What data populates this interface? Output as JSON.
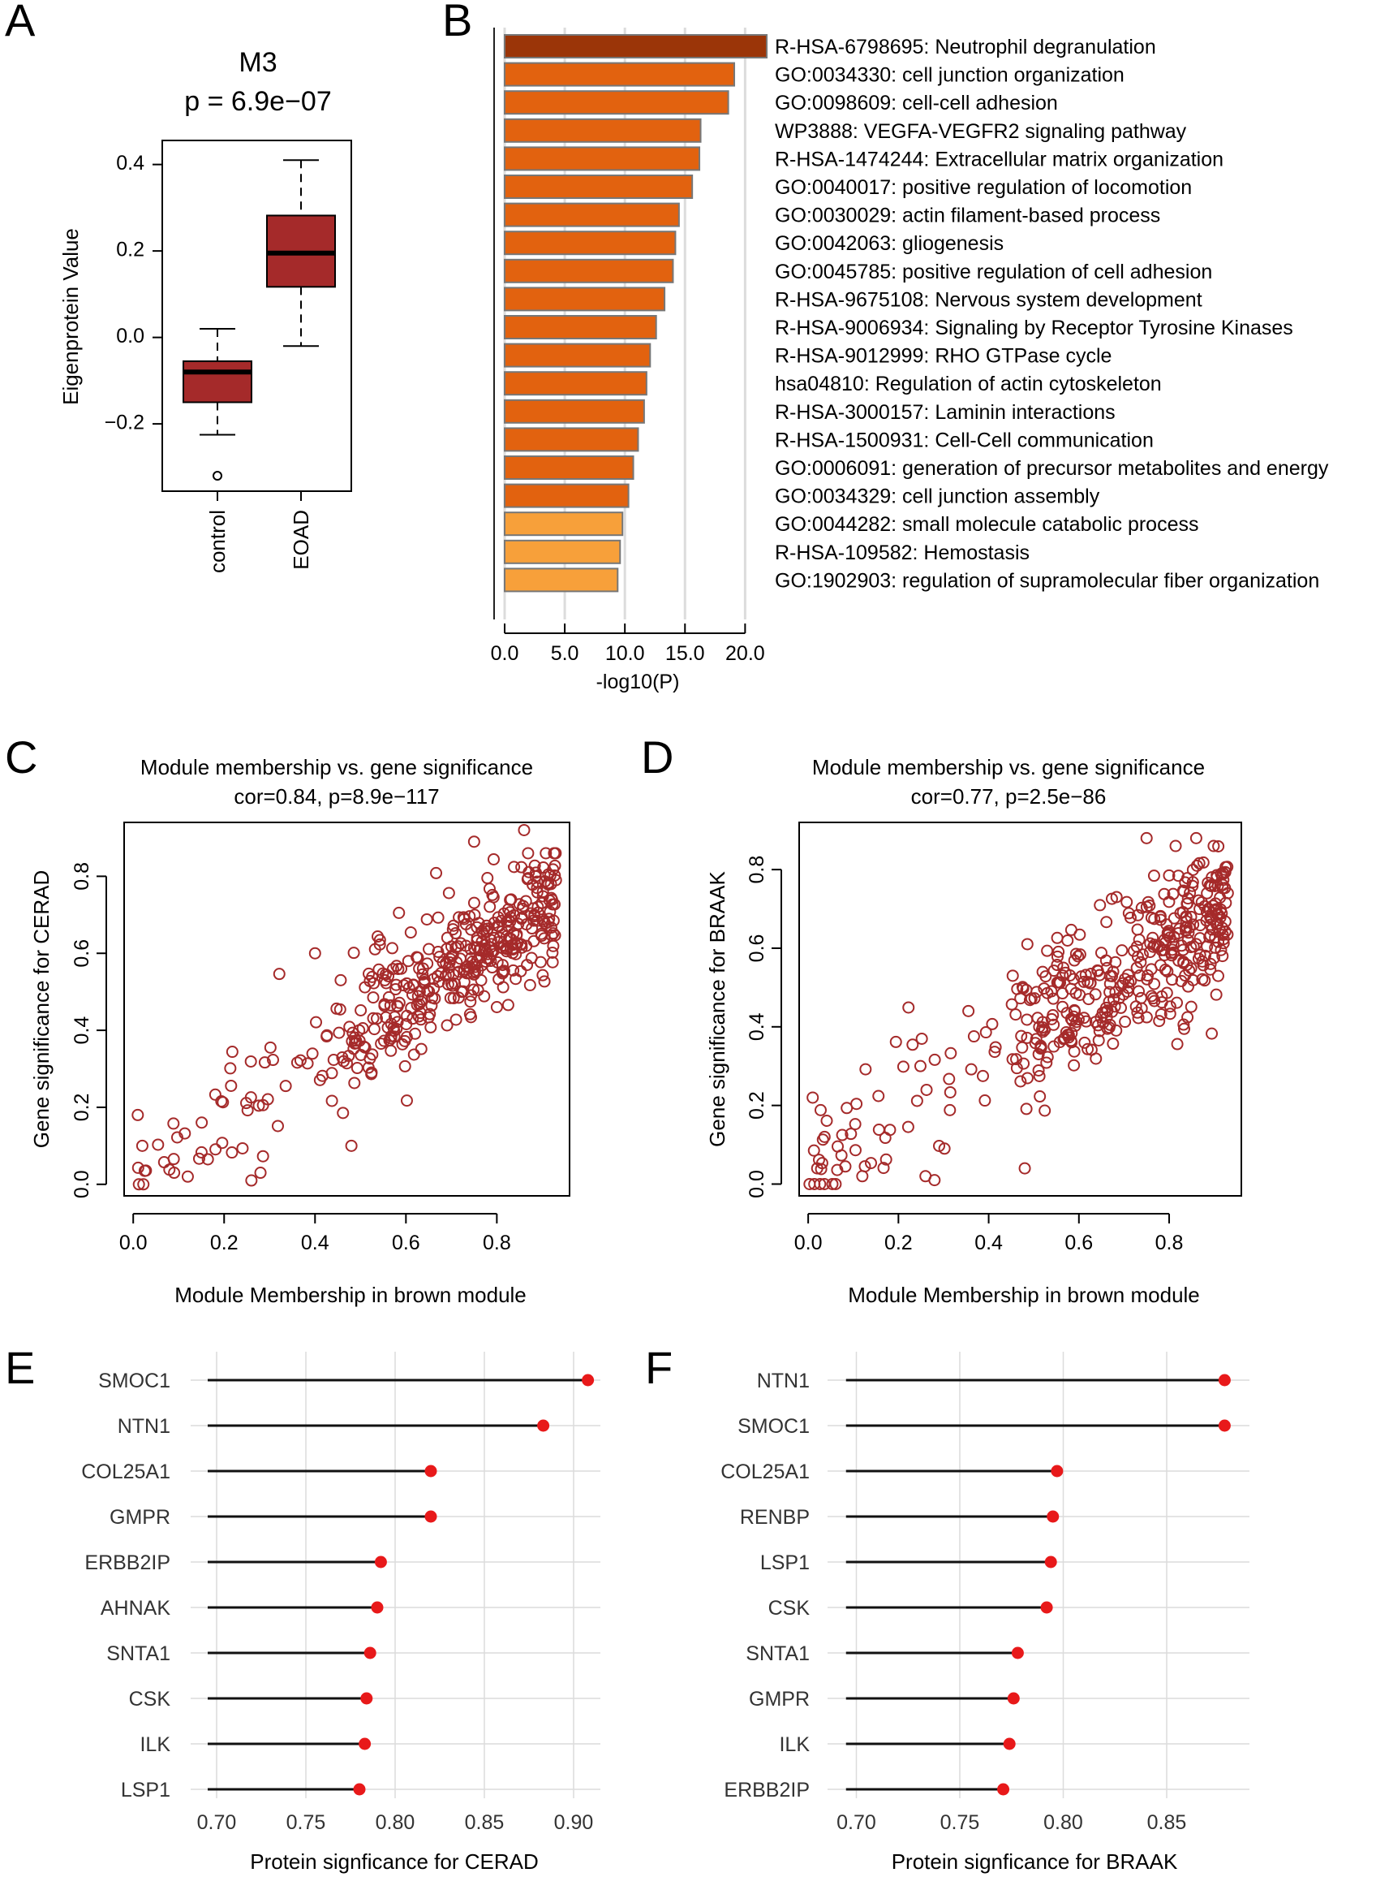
{
  "colors": {
    "box_fill": "#a52a2a",
    "scatter": "#a52a2a",
    "bar_dark": "#9b3508",
    "bar_mid": "#e2620f",
    "bar_light": "#f7a03a",
    "lollipop_dot": "#e8191a",
    "grid": "#dcdcdc"
  },
  "chart_data": [
    {
      "panel": "A",
      "type": "box",
      "title": "M3",
      "subtitle": "p = 6.9e−07",
      "ylabel": "Eigenprotein Value",
      "ylim": [
        -0.35,
        0.45
      ],
      "yticks": [
        {
          "value": 0.4,
          "label": "0.4"
        },
        {
          "value": 0.2,
          "label": "0.2"
        },
        {
          "value": 0.0,
          "label": "0.0"
        },
        {
          "value": -0.2,
          "label": "−0.2"
        }
      ],
      "groups": [
        {
          "name": "control",
          "min": -0.225,
          "q1": -0.15,
          "median": -0.08,
          "q3": -0.055,
          "max": 0.02,
          "outliers": [
            -0.32
          ]
        },
        {
          "name": "EOAD",
          "min": -0.02,
          "q1": 0.117,
          "median": 0.195,
          "q3": 0.282,
          "max": 0.41,
          "outliers": []
        }
      ]
    },
    {
      "panel": "B",
      "type": "bar",
      "orientation": "horizontal",
      "xlabel": "-log10(P)",
      "xlim": [
        0,
        22
      ],
      "xticks": [
        {
          "value": 0,
          "label": "0.0"
        },
        {
          "value": 5,
          "label": "5.0"
        },
        {
          "value": 10,
          "label": "10.0"
        },
        {
          "value": 15,
          "label": "15.0"
        },
        {
          "value": 20,
          "label": "20.0"
        }
      ],
      "categories": [
        "R-HSA-6798695: Neutrophil degranulation",
        "GO:0034330: cell junction organization",
        "GO:0098609: cell-cell adhesion",
        "WP3888: VEGFA-VEGFR2 signaling pathway",
        "R-HSA-1474244: Extracellular matrix organization",
        "GO:0040017: positive regulation of locomotion",
        "GO:0030029: actin filament-based process",
        "GO:0042063: gliogenesis",
        "GO:0045785: positive regulation of cell adhesion",
        "R-HSA-9675108: Nervous system development",
        "R-HSA-9006934: Signaling by Receptor Tyrosine Kinases",
        "R-HSA-9012999: RHO GTPase cycle",
        "hsa04810: Regulation of actin cytoskeleton",
        "R-HSA-3000157: Laminin interactions",
        "R-HSA-1500931: Cell-Cell communication",
        "GO:0006091: generation of precursor metabolites and energy",
        "GO:0034329: cell junction assembly",
        "GO:0044282: small molecule catabolic process",
        "R-HSA-109582: Hemostasis",
        "GO:1902903: regulation of supramolecular fiber organization"
      ],
      "values": [
        21.8,
        19.1,
        18.6,
        16.3,
        16.2,
        15.6,
        14.5,
        14.2,
        14.0,
        13.3,
        12.6,
        12.1,
        11.8,
        11.6,
        11.1,
        10.7,
        10.3,
        9.8,
        9.6,
        9.4
      ],
      "levels": [
        "dark",
        "mid",
        "mid",
        "mid",
        "mid",
        "mid",
        "mid",
        "mid",
        "mid",
        "mid",
        "mid",
        "mid",
        "mid",
        "mid",
        "mid",
        "mid",
        "mid",
        "light",
        "light",
        "light"
      ]
    },
    {
      "panel": "C",
      "type": "scatter",
      "title": "Module membership vs. gene significance",
      "subtitle": "cor=0.84, p=8.9e−117",
      "xlabel": "Module Membership in brown module",
      "ylabel": "Gene significance for CERAD",
      "xlim": [
        -0.02,
        0.96
      ],
      "ylim": [
        -0.03,
        0.94
      ],
      "xticks": [
        {
          "value": 0.0,
          "label": "0.0"
        },
        {
          "value": 0.2,
          "label": "0.2"
        },
        {
          "value": 0.4,
          "label": "0.4"
        },
        {
          "value": 0.6,
          "label": "0.6"
        },
        {
          "value": 0.8,
          "label": "0.8"
        }
      ],
      "yticks": [
        {
          "value": 0.0,
          "label": "0.0"
        },
        {
          "value": 0.2,
          "label": "0.2"
        },
        {
          "value": 0.4,
          "label": "0.4"
        },
        {
          "value": 0.6,
          "label": "0.6"
        },
        {
          "value": 0.8,
          "label": "0.8"
        }
      ],
      "points_generated": {
        "n": 430,
        "slope": 0.84,
        "intercept": 0.02,
        "noise": 0.085,
        "seed": 7
      },
      "anchor_points": [
        [
          0.01,
          0.18
        ],
        [
          0.02,
          0.1
        ],
        [
          0.09,
          0.03
        ],
        [
          0.12,
          0.02
        ],
        [
          0.26,
          0.01
        ],
        [
          0.28,
          0.03
        ],
        [
          0.4,
          0.6
        ],
        [
          0.48,
          0.1
        ],
        [
          0.75,
          0.89
        ],
        [
          0.86,
          0.92
        ],
        [
          0.93,
          0.79
        ]
      ]
    },
    {
      "panel": "D",
      "type": "scatter",
      "title": "Module membership vs. gene significance",
      "subtitle": "cor=0.77, p=2.5e−86",
      "xlabel": "Module Membership in brown module",
      "ylabel": "Gene significance for BRAAK",
      "xlim": [
        -0.02,
        0.96
      ],
      "ylim": [
        -0.03,
        0.92
      ],
      "xticks": [
        {
          "value": 0.0,
          "label": "0.0"
        },
        {
          "value": 0.2,
          "label": "0.2"
        },
        {
          "value": 0.4,
          "label": "0.4"
        },
        {
          "value": 0.6,
          "label": "0.6"
        },
        {
          "value": 0.8,
          "label": "0.8"
        }
      ],
      "yticks": [
        {
          "value": 0.0,
          "label": "0.0"
        },
        {
          "value": 0.2,
          "label": "0.2"
        },
        {
          "value": 0.4,
          "label": "0.4"
        },
        {
          "value": 0.6,
          "label": "0.6"
        },
        {
          "value": 0.8,
          "label": "0.8"
        }
      ],
      "points_generated": {
        "n": 430,
        "slope": 0.77,
        "intercept": 0.04,
        "noise": 0.095,
        "seed": 13
      },
      "anchor_points": [
        [
          0.01,
          0.22
        ],
        [
          0.02,
          0.04
        ],
        [
          0.12,
          0.02
        ],
        [
          0.26,
          0.02
        ],
        [
          0.28,
          0.01
        ],
        [
          0.48,
          0.04
        ],
        [
          0.75,
          0.88
        ],
        [
          0.86,
          0.88
        ],
        [
          0.93,
          0.74
        ]
      ]
    },
    {
      "panel": "E",
      "type": "lollipop",
      "xlabel": "Protein signficance for CERAD",
      "xlim": [
        0.69,
        0.915
      ],
      "baseline": 0.695,
      "xticks": [
        {
          "value": 0.7,
          "label": "0.70"
        },
        {
          "value": 0.75,
          "label": "0.75"
        },
        {
          "value": 0.8,
          "label": "0.80"
        },
        {
          "value": 0.85,
          "label": "0.85"
        },
        {
          "value": 0.9,
          "label": "0.90"
        }
      ],
      "categories": [
        "SMOC1",
        "NTN1",
        "COL25A1",
        "GMPR",
        "ERBB2IP",
        "AHNAK",
        "SNTA1",
        "CSK",
        "ILK",
        "LSP1"
      ],
      "values": [
        0.908,
        0.883,
        0.82,
        0.82,
        0.792,
        0.79,
        0.786,
        0.784,
        0.783,
        0.78
      ]
    },
    {
      "panel": "F",
      "type": "lollipop",
      "xlabel": "Protein signficance for BRAAK",
      "xlim": [
        0.69,
        0.89
      ],
      "baseline": 0.695,
      "xticks": [
        {
          "value": 0.7,
          "label": "0.70"
        },
        {
          "value": 0.75,
          "label": "0.75"
        },
        {
          "value": 0.8,
          "label": "0.80"
        },
        {
          "value": 0.85,
          "label": "0.85"
        }
      ],
      "categories": [
        "NTN1",
        "SMOC1",
        "COL25A1",
        "RENBP",
        "LSP1",
        "CSK",
        "SNTA1",
        "GMPR",
        "ILK",
        "ERBB2IP"
      ],
      "values": [
        0.878,
        0.878,
        0.797,
        0.795,
        0.794,
        0.792,
        0.778,
        0.776,
        0.774,
        0.771
      ]
    }
  ]
}
